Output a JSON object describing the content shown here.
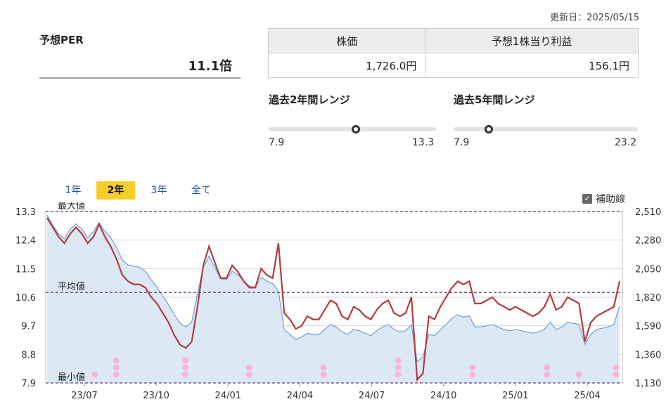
{
  "header": {
    "updated": "更新日：2025/05/15"
  },
  "per": {
    "title": "予想PER",
    "value": "11.1倍"
  },
  "info_table": {
    "headers": [
      "株価",
      "予想1株当り利益"
    ],
    "values": [
      "1,726.0円",
      "156.1円"
    ]
  },
  "ranges": [
    {
      "title": "過去2年間レンジ",
      "min": "7.9",
      "max": "13.3",
      "position": 0.52
    },
    {
      "title": "過去5年間レンジ",
      "min": "7.9",
      "max": "23.2",
      "position": 0.19
    }
  ],
  "tabs": [
    {
      "label": "1年",
      "active": false
    },
    {
      "label": "2年",
      "active": true
    },
    {
      "label": "3年",
      "active": false
    },
    {
      "label": "全て",
      "active": false
    }
  ],
  "aux_lines": {
    "label": "補助線",
    "checked": true
  },
  "chart_data": {
    "type": "line",
    "left_axis": {
      "ticks": [
        "13.3",
        "12.4",
        "11.5",
        "10.6",
        "9.7",
        "8.8",
        "7.9"
      ],
      "range": [
        7.9,
        13.3
      ]
    },
    "right_axis": {
      "ticks": [
        "2,510",
        "2,280",
        "2,050",
        "1,820",
        "1,590",
        "1,360",
        "1,130"
      ],
      "range": [
        1130,
        2510
      ]
    },
    "x_ticks": [
      "23/07",
      "23/10",
      "24/01",
      "24/04",
      "24/07",
      "24/10",
      "25/01",
      "25/04"
    ],
    "reference_lines": [
      {
        "label": "最大値",
        "value": 13.3
      },
      {
        "label": "平均値",
        "value": 10.75
      },
      {
        "label": "最小値",
        "value": 7.9
      }
    ],
    "series": [
      {
        "axis": "left",
        "color": "#b23b3b",
        "values": [
          13.1,
          12.8,
          12.5,
          12.3,
          12.6,
          12.8,
          12.6,
          12.3,
          12.5,
          12.9,
          12.5,
          12.2,
          11.8,
          11.3,
          11.1,
          11.0,
          11.0,
          10.9,
          10.6,
          10.4,
          10.1,
          9.8,
          9.4,
          9.1,
          9.0,
          9.2,
          10.3,
          11.6,
          12.2,
          11.7,
          11.2,
          11.2,
          11.6,
          11.4,
          11.1,
          10.9,
          10.9,
          11.5,
          11.3,
          11.2,
          12.3,
          10.1,
          9.9,
          9.6,
          9.7,
          10.0,
          9.9,
          9.9,
          10.2,
          10.5,
          10.4,
          10.0,
          9.9,
          10.3,
          10.2,
          10.0,
          9.9,
          10.2,
          10.4,
          10.5,
          10.1,
          10.0,
          10.1,
          10.6,
          8.0,
          8.2,
          10.0,
          9.9,
          10.3,
          10.6,
          10.9,
          11.1,
          11.0,
          11.1,
          10.4,
          10.4,
          10.5,
          10.6,
          10.4,
          10.3,
          10.2,
          10.3,
          10.2,
          10.1,
          10.0,
          10.1,
          10.3,
          10.7,
          10.2,
          10.3,
          10.6,
          10.5,
          10.4,
          9.2,
          9.8,
          10.0,
          10.1,
          10.2,
          10.3,
          11.1
        ]
      },
      {
        "axis": "right",
        "color": "#6a9fd8",
        "fill": "#dde8f5",
        "values": [
          2480,
          2400,
          2330,
          2290,
          2370,
          2410,
          2370,
          2300,
          2350,
          2420,
          2350,
          2300,
          2220,
          2120,
          2080,
          2070,
          2060,
          2030,
          1960,
          1900,
          1830,
          1760,
          1680,
          1610,
          1580,
          1620,
          1850,
          2060,
          2150,
          2060,
          1970,
          1960,
          2030,
          2000,
          1950,
          1910,
          1900,
          1980,
          1950,
          1930,
          1870,
          1560,
          1520,
          1480,
          1500,
          1530,
          1520,
          1520,
          1560,
          1600,
          1580,
          1540,
          1520,
          1560,
          1550,
          1530,
          1510,
          1550,
          1580,
          1600,
          1560,
          1540,
          1550,
          1600,
          1300,
          1340,
          1520,
          1510,
          1560,
          1600,
          1650,
          1680,
          1660,
          1670,
          1580,
          1580,
          1590,
          1600,
          1580,
          1560,
          1550,
          1560,
          1550,
          1540,
          1530,
          1540,
          1560,
          1620,
          1560,
          1580,
          1620,
          1610,
          1600,
          1440,
          1520,
          1560,
          1570,
          1580,
          1600,
          1750
        ]
      }
    ],
    "event_markers": [
      {
        "x_index": 9,
        "count": 1
      },
      {
        "x_index": 13,
        "count": 3
      },
      {
        "x_index": 26,
        "count": 3
      },
      {
        "x_index": 38,
        "count": 2
      },
      {
        "x_index": 52,
        "count": 2
      },
      {
        "x_index": 66,
        "count": 3
      },
      {
        "x_index": 80,
        "count": 2
      },
      {
        "x_index": 94,
        "count": 2
      },
      {
        "x_index": 100,
        "count": 1
      },
      {
        "x_index": 107,
        "count": 2
      }
    ]
  }
}
